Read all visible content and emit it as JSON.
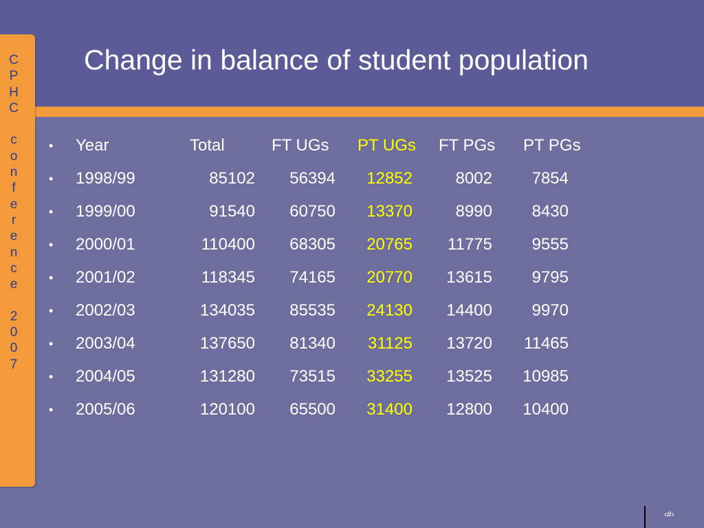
{
  "slide": {
    "title": "Change in balance of student population",
    "side_label": [
      "C",
      "P",
      "H",
      "C",
      " ",
      "c",
      "o",
      "n",
      "f",
      "e",
      "r",
      "e",
      "n",
      "c",
      "e",
      " ",
      "2",
      "0",
      "0",
      "7"
    ],
    "page_number": "‹#›",
    "colors": {
      "background": "#6e6e9e",
      "title_band": "#5b5b98",
      "accent": "#f39b3a",
      "side_text": "#2f3a99",
      "highlight": "#ffff00"
    }
  },
  "table": {
    "header": {
      "year": "Year",
      "total": "Total",
      "ft_ugs": "FT UGs",
      "pt_ugs": "PT UGs",
      "ft_pgs": "FT PGs",
      "pt_pgs": "PT PGs"
    },
    "rows": [
      {
        "year": "1998/99",
        "total": "85102",
        "ft_ugs": "56394",
        "pt_ugs": "12852",
        "ft_pgs": "8002",
        "pt_pgs": "7854"
      },
      {
        "year": "1999/00",
        "total": "91540",
        "ft_ugs": "60750",
        "pt_ugs": "13370",
        "ft_pgs": "8990",
        "pt_pgs": "8430"
      },
      {
        "year": "2000/01",
        "total": "110400",
        "ft_ugs": "68305",
        "pt_ugs": "20765",
        "ft_pgs": "11775",
        "pt_pgs": "9555"
      },
      {
        "year": "2001/02",
        "total": "118345",
        "ft_ugs": "74165",
        "pt_ugs": "20770",
        "ft_pgs": "13615",
        "pt_pgs": "9795"
      },
      {
        "year": "2002/03",
        "total": "134035",
        "ft_ugs": "85535",
        "pt_ugs": "24130",
        "ft_pgs": "14400",
        "pt_pgs": "9970"
      },
      {
        "year": "2003/04",
        "total": "137650",
        "ft_ugs": "81340",
        "pt_ugs": "31125",
        "ft_pgs": "13720",
        "pt_pgs": "11465"
      },
      {
        "year": "2004/05",
        "total": "131280",
        "ft_ugs": "73515",
        "pt_ugs": "33255",
        "ft_pgs": "13525",
        "pt_pgs": "10985"
      },
      {
        "year": "2005/06",
        "total": "120100",
        "ft_ugs": "65500",
        "pt_ugs": "31400",
        "ft_pgs": "12800",
        "pt_pgs": "10400"
      }
    ]
  }
}
